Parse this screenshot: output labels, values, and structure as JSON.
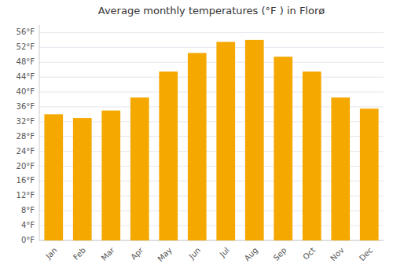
{
  "chart_data": {
    "type": "bar",
    "title": "Average monthly temperatures (°F ) in Florø",
    "categories": [
      "Jan",
      "Feb",
      "Mar",
      "Apr",
      "May",
      "Jun",
      "Jul",
      "Aug",
      "Sep",
      "Oct",
      "Nov",
      "Dec"
    ],
    "values": [
      34.0,
      33.0,
      35.0,
      38.5,
      45.5,
      50.5,
      53.5,
      54.0,
      49.5,
      45.5,
      38.5,
      35.5
    ],
    "color": "#F5A800",
    "ylim": [
      0,
      58
    ],
    "yticks": [
      {
        "value": 0,
        "label": "0°F"
      },
      {
        "value": 4,
        "label": "4°F"
      },
      {
        "value": 8,
        "label": "8°F"
      },
      {
        "value": 12,
        "label": "12°F"
      },
      {
        "value": 16,
        "label": "16°F"
      },
      {
        "value": 20,
        "label": "20°F"
      },
      {
        "value": 24,
        "label": "24°F"
      },
      {
        "value": 28,
        "label": "28°F"
      },
      {
        "value": 32,
        "label": "32°F"
      },
      {
        "value": 36,
        "label": "36°F"
      },
      {
        "value": 40,
        "label": "40°F"
      },
      {
        "value": 44,
        "label": "44°F"
      },
      {
        "value": 48,
        "label": "48°F"
      },
      {
        "value": 52,
        "label": "52°F"
      },
      {
        "value": 56,
        "label": "56°F"
      }
    ],
    "grid": true
  }
}
